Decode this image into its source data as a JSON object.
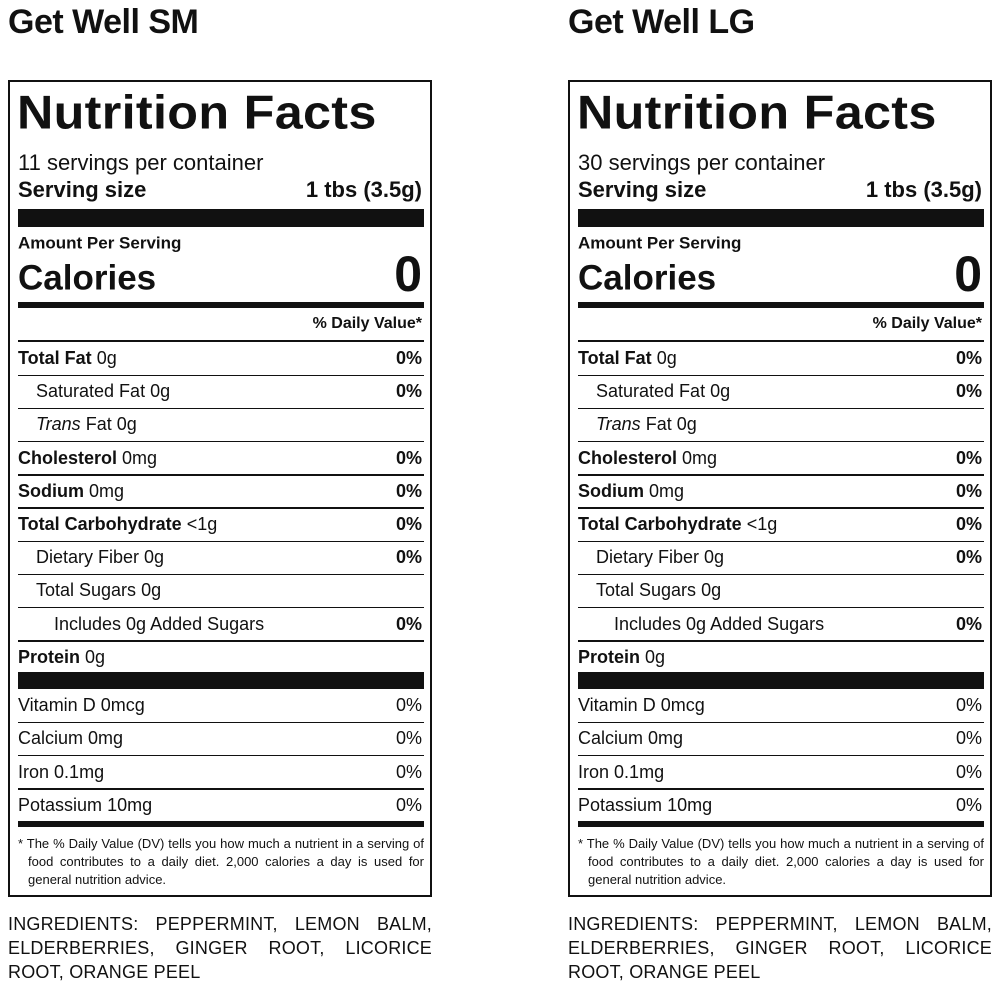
{
  "panels": [
    {
      "title": "Get Well SM",
      "label": {
        "heading": "Nutrition Facts",
        "servings": "11 servings per container",
        "serving_size_label": "Serving size",
        "serving_size_value": "1 tbs (3.5g)",
        "amount_per_serving": "Amount Per Serving",
        "calories_label": "Calories",
        "calories_value": "0",
        "daily_value_header": "% Daily Value*",
        "nutrients": [
          {
            "name": "Total Fat",
            "amount": "0g",
            "dv": "0%"
          },
          {
            "name": "Saturated Fat",
            "amount": "0g",
            "dv": "0%"
          },
          {
            "name": "Trans",
            "name_suffix": "Fat",
            "amount": "0g"
          },
          {
            "name": "Cholesterol",
            "amount": "0mg",
            "dv": "0%"
          },
          {
            "name": "Sodium",
            "amount": "0mg",
            "dv": "0%"
          },
          {
            "name": "Total Carbohydrate",
            "amount": "<1g",
            "dv": "0%"
          },
          {
            "name": "Dietary Fiber",
            "amount": "0g",
            "dv": "0%"
          },
          {
            "name": "Total Sugars",
            "amount": "0g"
          },
          {
            "name": "Includes 0g Added Sugars",
            "dv": "0%"
          },
          {
            "name": "Protein",
            "amount": "0g"
          }
        ],
        "vitamins": [
          {
            "name": "Vitamin D",
            "amount": "0mcg",
            "dv": "0%"
          },
          {
            "name": "Calcium",
            "amount": "0mg",
            "dv": "0%"
          },
          {
            "name": "Iron",
            "amount": "0.1mg",
            "dv": "0%"
          },
          {
            "name": "Potassium",
            "amount": "10mg",
            "dv": "0%"
          }
        ],
        "footnote": "* The % Daily Value (DV) tells you how much a nutrient in a serving of food contributes to a daily diet. 2,000 calories a day is used for general nutrition advice."
      },
      "ingredients": "INGREDIENTS: PEPPERMINT, LEMON BALM, ELDERBERRIES, GINGER ROOT, LICORICE ROOT, ORANGE PEEL"
    },
    {
      "title": "Get Well LG",
      "label": {
        "heading": "Nutrition Facts",
        "servings": "30 servings per container",
        "serving_size_label": "Serving size",
        "serving_size_value": "1 tbs (3.5g)",
        "amount_per_serving": "Amount Per Serving",
        "calories_label": "Calories",
        "calories_value": "0",
        "daily_value_header": "% Daily Value*",
        "nutrients": [
          {
            "name": "Total Fat",
            "amount": "0g",
            "dv": "0%"
          },
          {
            "name": "Saturated Fat",
            "amount": "0g",
            "dv": "0%"
          },
          {
            "name": "Trans",
            "name_suffix": "Fat",
            "amount": "0g"
          },
          {
            "name": "Cholesterol",
            "amount": "0mg",
            "dv": "0%"
          },
          {
            "name": "Sodium",
            "amount": "0mg",
            "dv": "0%"
          },
          {
            "name": "Total Carbohydrate",
            "amount": "<1g",
            "dv": "0%"
          },
          {
            "name": "Dietary Fiber",
            "amount": "0g",
            "dv": "0%"
          },
          {
            "name": "Total Sugars",
            "amount": "0g"
          },
          {
            "name": "Includes 0g Added Sugars",
            "dv": "0%"
          },
          {
            "name": "Protein",
            "amount": "0g"
          }
        ],
        "vitamins": [
          {
            "name": "Vitamin D",
            "amount": "0mcg",
            "dv": "0%"
          },
          {
            "name": "Calcium",
            "amount": "0mg",
            "dv": "0%"
          },
          {
            "name": "Iron",
            "amount": "0.1mg",
            "dv": "0%"
          },
          {
            "name": "Potassium",
            "amount": "10mg",
            "dv": "0%"
          }
        ],
        "footnote": "* The % Daily Value (DV) tells you how much a nutrient in a serving of food contributes to a daily diet. 2,000 calories a day is used for general nutrition advice."
      },
      "ingredients": "INGREDIENTS: PEPPERMINT, LEMON BALM, ELDERBERRIES, GINGER ROOT, LICORICE ROOT, ORANGE PEEL"
    }
  ]
}
